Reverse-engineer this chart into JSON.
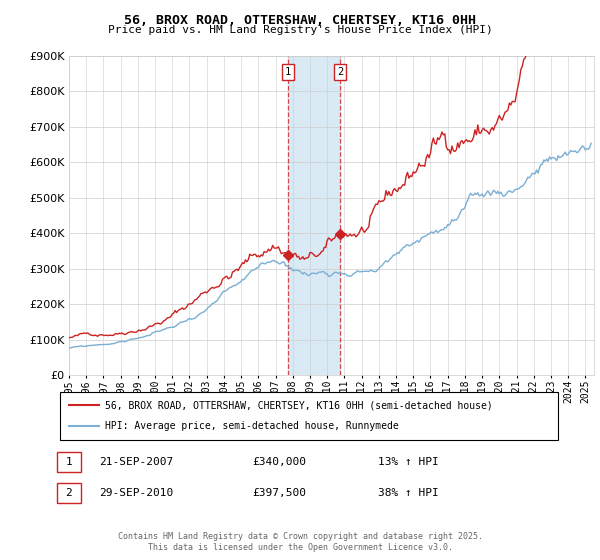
{
  "title": "56, BROX ROAD, OTTERSHAW, CHERTSEY, KT16 0HH",
  "subtitle": "Price paid vs. HM Land Registry's House Price Index (HPI)",
  "ylim": [
    0,
    900000
  ],
  "xlim_start": 1995.0,
  "xlim_end": 2025.5,
  "sale1_date": 2007.72,
  "sale1_price": 340000,
  "sale1_label": "1",
  "sale1_text": "21-SEP-2007",
  "sale1_pct": "13% ↑ HPI",
  "sale2_date": 2010.75,
  "sale2_price": 397500,
  "sale2_label": "2",
  "sale2_text": "29-SEP-2010",
  "sale2_pct": "38% ↑ HPI",
  "hpi_color": "#7bafd4",
  "price_color": "#cc2222",
  "shade_color": "#daeaf5",
  "vline_color": "#cc2222",
  "legend1": "56, BROX ROAD, OTTERSHAW, CHERTSEY, KT16 0HH (semi-detached house)",
  "legend2": "HPI: Average price, semi-detached house, Runnymede",
  "footer": "Contains HM Land Registry data © Crown copyright and database right 2025.\nThis data is licensed under the Open Government Licence v3.0.",
  "background_color": "#ffffff",
  "grid_color": "#cccccc"
}
